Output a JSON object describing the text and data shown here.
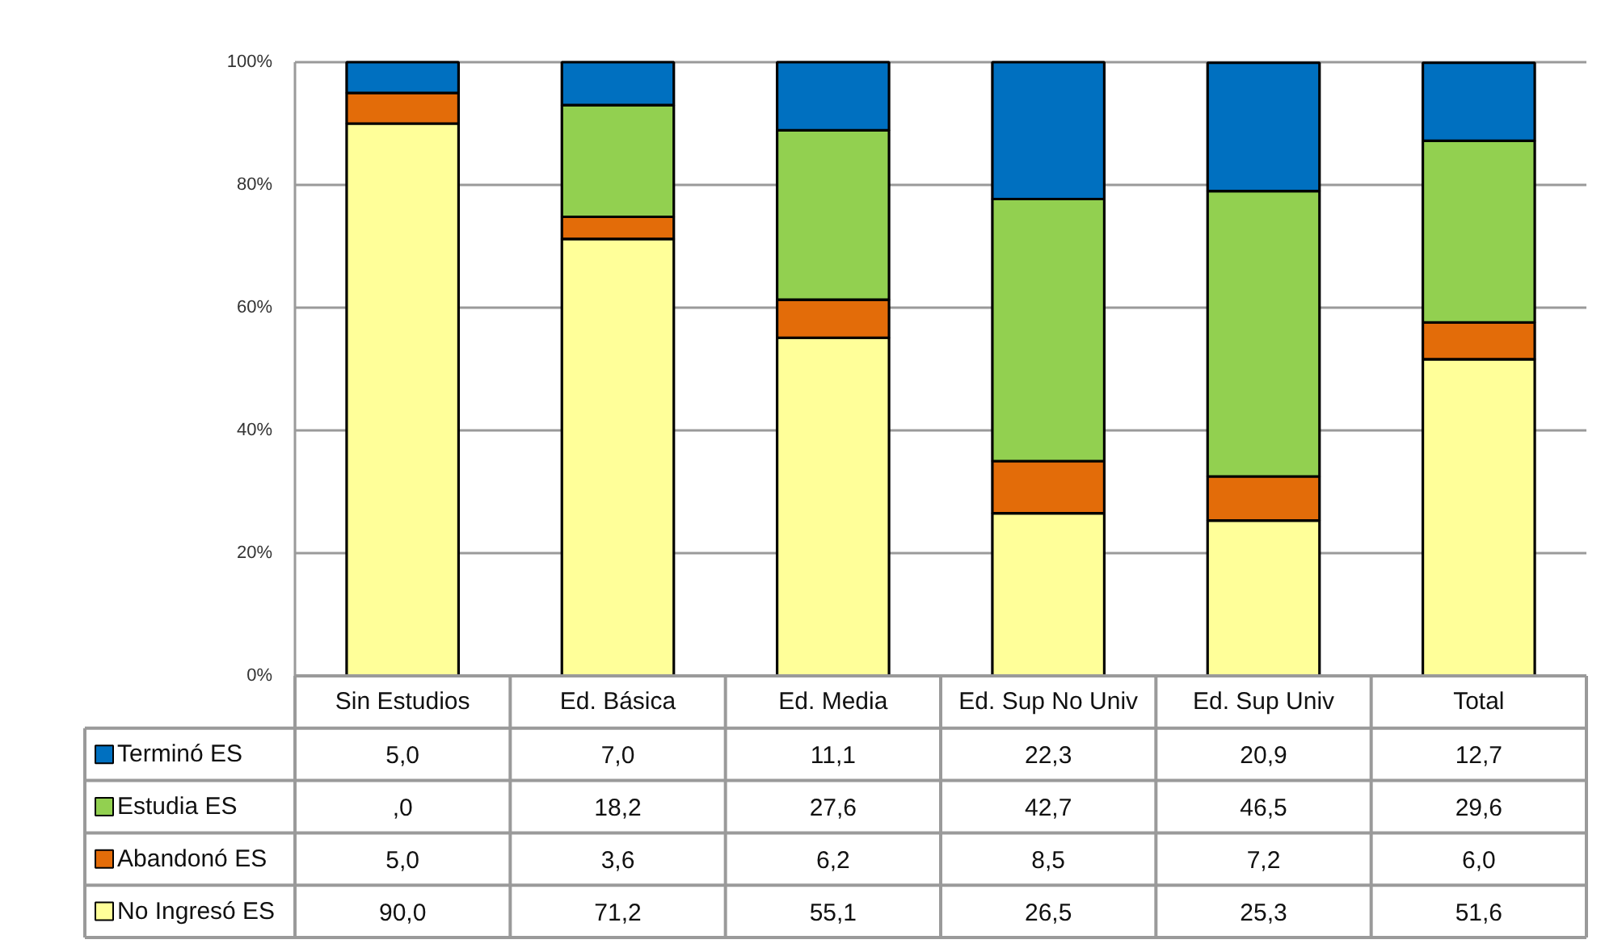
{
  "chart_data": {
    "type": "bar",
    "stacked": true,
    "categories": [
      "Sin Estudios",
      "Ed. Básica",
      "Ed. Media",
      "Ed. Sup No Univ",
      "Ed. Sup Univ",
      "Total"
    ],
    "series": [
      {
        "name": "No Ingresó ES",
        "color": "#ffff99",
        "values": [
          90.0,
          71.2,
          55.1,
          26.5,
          25.3,
          51.6
        ],
        "value_labels": [
          "90,0",
          "71,2",
          "55,1",
          "26,5",
          "25,3",
          "51,6"
        ]
      },
      {
        "name": "Abandonó ES",
        "color": "#e36c09",
        "values": [
          5.0,
          3.6,
          6.2,
          8.5,
          7.2,
          6.0
        ],
        "value_labels": [
          "5,0",
          "3,6",
          "6,2",
          "8,5",
          "7,2",
          "6,0"
        ]
      },
      {
        "name": "Estudia ES",
        "color": "#92d050",
        "values": [
          0.0,
          18.2,
          27.6,
          42.7,
          46.5,
          29.6
        ],
        "value_labels": [
          ",0",
          "18,2",
          "27,6",
          "42,7",
          "46,5",
          "29,6"
        ]
      },
      {
        "name": "Terminó ES",
        "color": "#0070c0",
        "values": [
          5.0,
          7.0,
          11.1,
          22.3,
          20.9,
          12.7
        ],
        "value_labels": [
          "5,0",
          "7,0",
          "11,1",
          "22,3",
          "20,9",
          "12,7"
        ]
      }
    ],
    "ylim": [
      0,
      100
    ],
    "yticks": [
      {
        "value": 0,
        "label": "0%"
      },
      {
        "value": 20,
        "label": "20%"
      },
      {
        "value": 40,
        "label": "40%"
      },
      {
        "value": 60,
        "label": "60%"
      },
      {
        "value": 80,
        "label": "80%"
      },
      {
        "value": 100,
        "label": "100%"
      }
    ],
    "grid": "y",
    "legend": "bottom"
  }
}
